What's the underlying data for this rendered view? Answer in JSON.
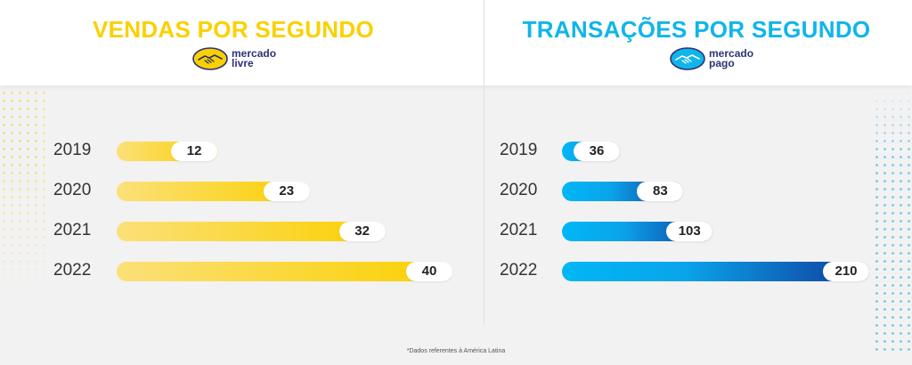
{
  "footnote": "*Dados referentes à América Latina",
  "colors": {
    "left_title": "#fbd000",
    "right_title": "#10b5ea",
    "left_bar_start": "#fbe07a",
    "left_bar_end": "#fbd000",
    "right_bar_start": "#00b7f5",
    "right_bar_end": "#123a9a"
  },
  "chart_data": [
    {
      "type": "bar",
      "orientation": "horizontal",
      "title": "VENDAS POR SEGUNDO",
      "brand": "mercado livre",
      "logo_line1": "mercado",
      "logo_line2": "livre",
      "logo_icon": "handshake-icon",
      "categories": [
        "2019",
        "2020",
        "2021",
        "2022"
      ],
      "values": [
        12,
        23,
        32,
        40
      ],
      "xlim": [
        0,
        40
      ],
      "grid": false,
      "legend": "none"
    },
    {
      "type": "bar",
      "orientation": "horizontal",
      "title": "TRANSAÇÕES POR SEGUNDO",
      "brand": "mercado pago",
      "logo_line1": "mercado",
      "logo_line2": "pago",
      "logo_icon": "handshake-icon",
      "categories": [
        "2019",
        "2020",
        "2021",
        "2022"
      ],
      "values": [
        36,
        83,
        103,
        210
      ],
      "xlim": [
        0,
        210
      ],
      "grid": false,
      "legend": "none"
    }
  ]
}
